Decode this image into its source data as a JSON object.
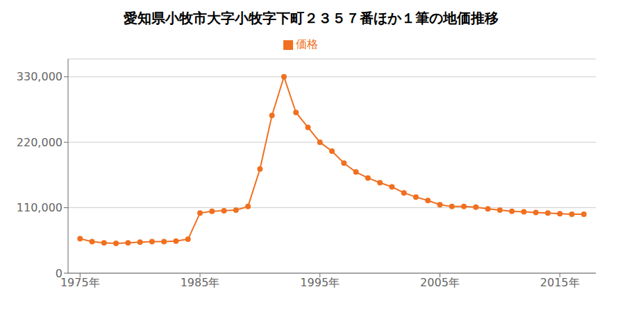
{
  "chart_data": {
    "type": "line",
    "title": "愛知県小牧市大字小牧字下町２３５７番ほか１筆の地価推移",
    "x": [
      1975,
      1976,
      1977,
      1978,
      1979,
      1980,
      1981,
      1982,
      1983,
      1984,
      1985,
      1986,
      1987,
      1988,
      1989,
      1990,
      1991,
      1992,
      1993,
      1994,
      1995,
      1996,
      1997,
      1998,
      1999,
      2000,
      2001,
      2002,
      2003,
      2004,
      2005,
      2006,
      2007,
      2008,
      2009,
      2010,
      2011,
      2012,
      2013,
      2014,
      2015,
      2016,
      2017
    ],
    "series": [
      {
        "name": "価格",
        "color": "#f07020",
        "marker": "circle",
        "values": [
          58000,
          53000,
          51000,
          50000,
          51000,
          52000,
          53000,
          53000,
          54000,
          57000,
          101000,
          104000,
          105000,
          106000,
          112000,
          175000,
          265000,
          330000,
          270000,
          245000,
          220000,
          205000,
          185000,
          170000,
          160000,
          152000,
          145000,
          135000,
          128000,
          122000,
          115000,
          112000,
          112000,
          111000,
          108000,
          106000,
          104000,
          103000,
          102000,
          101000,
          100000,
          99000,
          99000
        ]
      }
    ],
    "xlim": [
      1974,
      2018
    ],
    "xticks": [
      {
        "value": 1975,
        "label": "1975年"
      },
      {
        "value": 1985,
        "label": "1985年"
      },
      {
        "value": 1995,
        "label": "1995年"
      },
      {
        "value": 2005,
        "label": "2005年"
      },
      {
        "value": 2015,
        "label": "2015年"
      }
    ],
    "ylim": [
      0,
      360000
    ],
    "yticks": [
      0,
      {
        "value": 110000,
        "label": "110,000"
      },
      {
        "value": 220000,
        "label": "220,000"
      },
      {
        "value": 330000,
        "label": "330,000"
      }
    ],
    "grid": "y",
    "legend": "top"
  }
}
